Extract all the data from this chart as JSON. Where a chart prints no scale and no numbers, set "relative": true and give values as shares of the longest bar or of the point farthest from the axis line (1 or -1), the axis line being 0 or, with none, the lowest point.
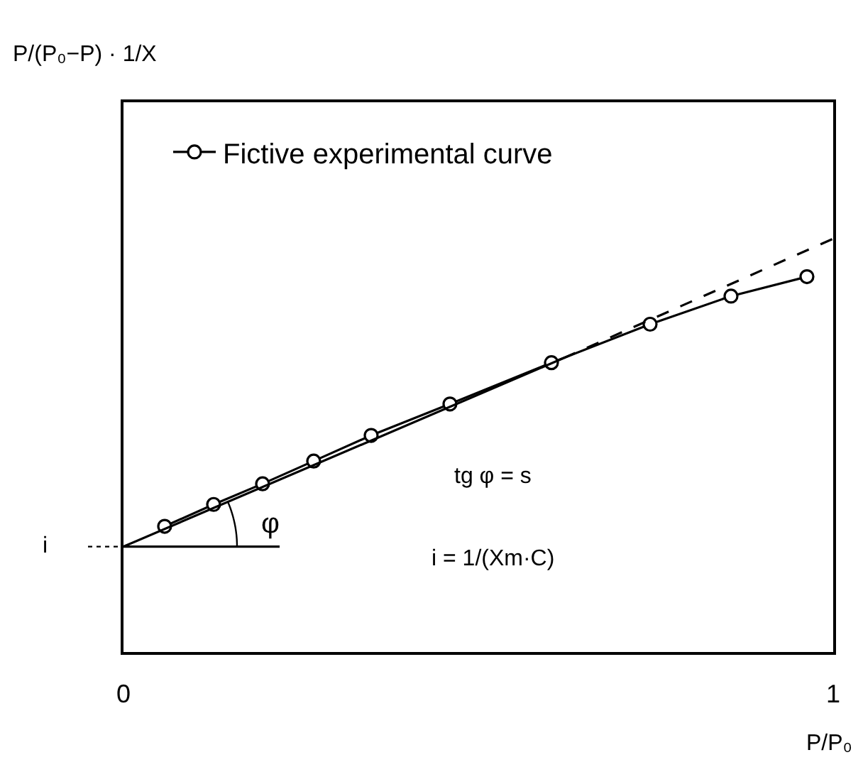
{
  "chart_data": {
    "type": "line",
    "relative": true,
    "xlabel": "P/P₀",
    "xlim": [
      0,
      1
    ],
    "xticks": [
      0,
      1
    ],
    "legend": "top left",
    "series": [
      {
        "name": "Fictive experimental curve",
        "color": "#000000",
        "marker": "circle",
        "line_style": "solid",
        "x": [
          0.058,
          0.127,
          0.196,
          0.268,
          0.349,
          0.46,
          0.603,
          0.742,
          0.856,
          0.963
        ],
        "values": [
          0.304,
          0.357,
          0.407,
          0.462,
          0.524,
          0.6,
          0.7,
          0.793,
          0.861,
          0.908
        ]
      },
      {
        "color": "#000000",
        "marker": "none",
        "line_style": "solid",
        "x": [
          0,
          0.62
        ],
        "values": [
          0.255,
          0.711
        ]
      },
      {
        "color": "#000000",
        "marker": "none",
        "line_style": "dashed",
        "x": [
          0.62,
          1
        ],
        "values": [
          0.711,
          1
        ]
      },
      {
        "color": "#000000",
        "marker": "none",
        "line_style": "solid",
        "x": [
          0,
          0.22
        ],
        "values": [
          0.255,
          0.255
        ]
      }
    ],
    "annotations": [
      "P/(P₀−P) · 1/X",
      "i",
      "φ",
      "tg φ = s",
      "i = 1/(Xm·C)"
    ]
  }
}
